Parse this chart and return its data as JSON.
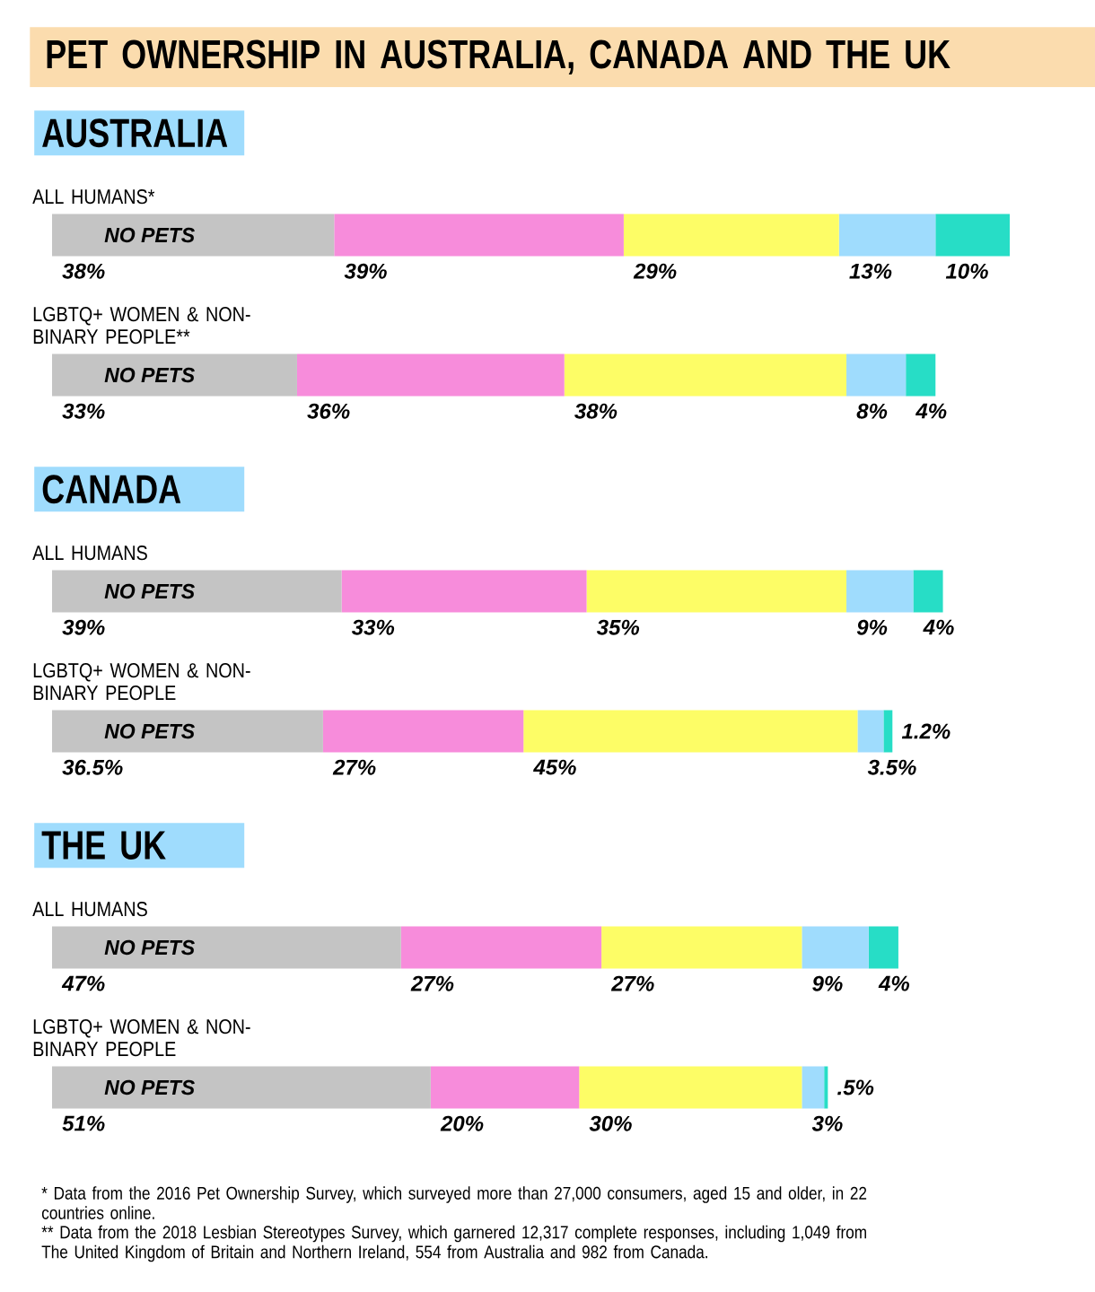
{
  "chart_data": [
    {
      "type": "bar",
      "orientation": "horizontal",
      "stacked": true,
      "tick_labels": "y",
      "title": "PET OWNERSHIP IN AUSTRALIA, CANADA AND THE UK",
      "subtitle": "AUSTRALIA",
      "categories": [
        "ALL HUMANS*",
        "LGBTQ+ WOMEN & NON-BINARY PEOPLE**"
      ],
      "series": [
        {
          "name": "NO PETS",
          "color": "#c4c4c4",
          "values": [
            38,
            33
          ],
          "value_labels": [
            "38%",
            "33%"
          ]
        },
        {
          "color": "#f78cdb",
          "values": [
            39,
            36
          ],
          "value_labels": [
            "39%",
            "36%"
          ]
        },
        {
          "color": "#fdfd66",
          "values": [
            29,
            38
          ],
          "value_labels": [
            "29%",
            "38%"
          ]
        },
        {
          "color": "#9fdcfd",
          "values": [
            13,
            8
          ],
          "value_labels": [
            "13%",
            "8%"
          ]
        },
        {
          "color": "#27ddc6",
          "values": [
            10,
            4
          ],
          "value_labels": [
            "10%",
            "4%"
          ]
        }
      ]
    },
    {
      "type": "bar",
      "orientation": "horizontal",
      "stacked": true,
      "tick_labels": "y",
      "subtitle": "CANADA",
      "categories": [
        "ALL HUMANS",
        "LGBTQ+ WOMEN & NON-BINARY PEOPLE"
      ],
      "series": [
        {
          "name": "NO PETS",
          "color": "#c4c4c4",
          "values": [
            39,
            36.5
          ],
          "value_labels": [
            "39%",
            "36.5%"
          ]
        },
        {
          "color": "#f78cdb",
          "values": [
            33,
            27
          ],
          "value_labels": [
            "33%",
            "27%"
          ]
        },
        {
          "color": "#fdfd66",
          "values": [
            35,
            45
          ],
          "value_labels": [
            "35%",
            "45%"
          ]
        },
        {
          "color": "#9fdcfd",
          "values": [
            9,
            3.5
          ],
          "value_labels": [
            "9%",
            "3.5%"
          ]
        },
        {
          "color": "#27ddc6",
          "values": [
            4,
            1.2
          ],
          "value_labels": [
            "4%",
            "1.2%"
          ]
        }
      ]
    },
    {
      "type": "bar",
      "orientation": "horizontal",
      "stacked": true,
      "tick_labels": "y",
      "subtitle": "THE UK",
      "categories": [
        "ALL HUMANS",
        "LGBTQ+ WOMEN & NON-BINARY PEOPLE"
      ],
      "series": [
        {
          "name": "NO PETS",
          "color": "#c4c4c4",
          "values": [
            47,
            51
          ],
          "value_labels": [
            "47%",
            "51%"
          ]
        },
        {
          "color": "#f78cdb",
          "values": [
            27,
            20
          ],
          "value_labels": [
            "27%",
            "20%"
          ]
        },
        {
          "color": "#fdfd66",
          "values": [
            27,
            30
          ],
          "value_labels": [
            "27%",
            "30%"
          ]
        },
        {
          "color": "#9fdcfd",
          "values": [
            9,
            3
          ],
          "value_labels": [
            "9%",
            "3%"
          ]
        },
        {
          "color": "#27ddc6",
          "values": [
            4,
            0.5
          ],
          "value_labels": [
            "4%",
            ".5%"
          ]
        }
      ],
      "annotations": [
        "* Data from the 2016 Pet Ownership Survey, which surveyed more than 27,000 consumers, aged 15 and older, in 22 countries online.",
        "** Data from the 2018 Lesbian Stereotypes Survey, which garnered 12,317 complete responses, including 1,049 from The United Kingdom of Britain and Northern Ireland, 554 from Australia and 982 from Canada."
      ]
    }
  ]
}
